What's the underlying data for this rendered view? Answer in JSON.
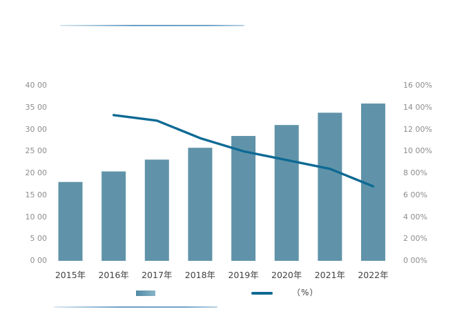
{
  "chart_data": {
    "type": "bar",
    "title": "",
    "categories": [
      "2015年",
      "2016年",
      "2017年",
      "2018年",
      "2019年",
      "2020年",
      "2021年",
      "2022年"
    ],
    "series": [
      {
        "name": "",
        "type": "bar",
        "axis": "left",
        "values": [
          18.0,
          20.4,
          23.1,
          25.8,
          28.5,
          31.0,
          33.8,
          35.9
        ]
      },
      {
        "name": "（%）",
        "type": "line",
        "axis": "right",
        "values": [
          null,
          13.3,
          12.8,
          11.2,
          10.0,
          9.2,
          8.4,
          6.8
        ]
      }
    ],
    "y_axis_left": {
      "min": 0,
      "max": 40,
      "tick_labels": [
        "40 00",
        "35 00",
        "30 00",
        "25 00",
        "20 00",
        "15 00",
        "10 00",
        "5 00",
        "0 00"
      ]
    },
    "y_axis_right": {
      "min": 0,
      "max": 16,
      "tick_labels": [
        "16 00%",
        "14 00%",
        "12 00%",
        "10 00%",
        "8 00%",
        "6 00%",
        "4 00%",
        "2 00%",
        "0 00%"
      ]
    },
    "grid": false,
    "legend_position": "bottom",
    "legend": {
      "bar_label": "",
      "line_label": "（%）"
    }
  },
  "colors": {
    "bar": "#6093a9",
    "line": "#0e6a94",
    "y_axis_text": "#8c8c8c",
    "x_axis_text": "#3f3f3f"
  }
}
